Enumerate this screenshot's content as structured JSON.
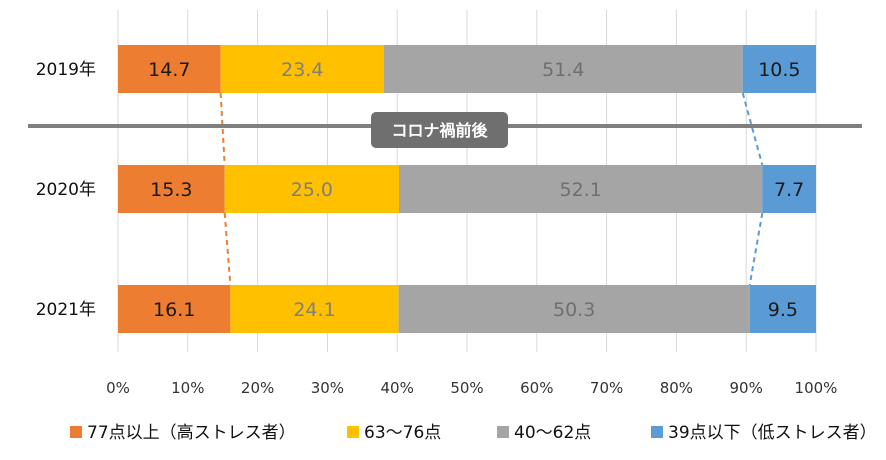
{
  "chart_data": {
    "type": "bar",
    "orientation": "horizontal",
    "stacked": "percent",
    "categories": [
      "2019年",
      "2020年",
      "2021年"
    ],
    "series": [
      {
        "name": "77点以上（高ストレス者）",
        "values": [
          14.7,
          15.3,
          16.1
        ],
        "color": "#ED7D31",
        "label_color": "#1a1a1a"
      },
      {
        "name": "63～76点",
        "values": [
          23.4,
          25.0,
          24.1
        ],
        "color": "#FFC000",
        "label_color": "#7f7f7f"
      },
      {
        "name": "40～62点",
        "values": [
          51.4,
          52.1,
          50.3
        ],
        "color": "#A5A5A5",
        "label_color": "#6f6f6f"
      },
      {
        "name": "39点以下（低ストレス者）",
        "values": [
          10.5,
          7.7,
          9.5
        ],
        "color": "#5B9BD5",
        "label_color": "#1a1a1a"
      }
    ],
    "x_ticks": [
      "0%",
      "10%",
      "20%",
      "30%",
      "40%",
      "50%",
      "60%",
      "70%",
      "80%",
      "90%",
      "100%"
    ],
    "xlim": [
      0,
      100
    ],
    "grid": true,
    "legend": "bottom",
    "annotation": {
      "text": "コロナ禍前後",
      "between": [
        "2019年",
        "2020年"
      ]
    }
  }
}
